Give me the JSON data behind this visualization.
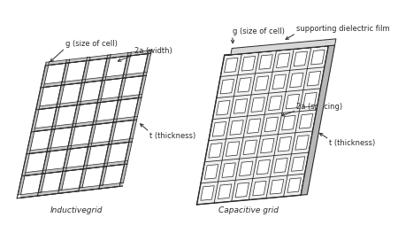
{
  "bg_color": "#ffffff",
  "line_color": "#2a2a2a",
  "title_left": "Inductivegrid",
  "title_right": "Capacitive grid",
  "annotation_g_left": "g (size of cell)",
  "annotation_2a_left": "2a (width)",
  "annotation_t_left": "t (thickness)",
  "annotation_g_right": "g (size of cell)",
  "annotation_support": "supporting dielectric film",
  "annotation_2a_right": "2a (spacing)",
  "annotation_t_right": "t (thickness)",
  "font_size": 6.0
}
